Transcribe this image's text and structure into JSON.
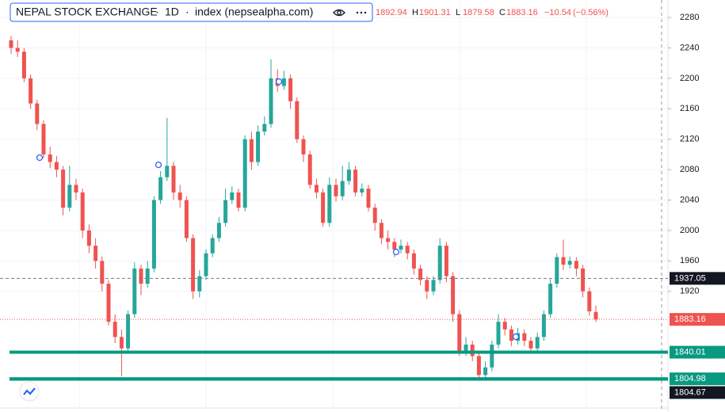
{
  "chart_data": {
    "type": "candlestick",
    "title": "NEPAL STOCK EXCHANGE",
    "interval": "1D",
    "source": "index (nepsealpha.com)",
    "ohlc_prefixes": [
      "O",
      "H",
      "L",
      "C"
    ],
    "change": {
      "value": -10.54,
      "label": "−10.54"
    },
    "change_percent": {
      "value": -0.56,
      "label": "(−0.56%)"
    },
    "open": [
      2250,
      2240,
      2235,
      2200,
      2167,
      2140,
      2100,
      2090,
      2080,
      2030,
      2060,
      2050,
      2000,
      1980,
      1960,
      1930,
      1880,
      1860,
      1845,
      1890,
      1950,
      1930,
      1950,
      2040,
      2070,
      2085,
      2050,
      2040,
      1990,
      1920,
      1940,
      1970,
      1990,
      2010,
      2040,
      2050,
      2030,
      2120,
      2090,
      2130,
      2140,
      2200,
      2190,
      2200,
      2170,
      2120,
      2100,
      2060,
      2050,
      2010,
      2060,
      2045,
      2065,
      2080,
      2050,
      2055,
      2030,
      2010,
      1990,
      1985,
      1975,
      1980,
      1970,
      1950,
      1935,
      1920,
      1935,
      1980,
      1940,
      1890,
      1840,
      1850,
      1835,
      1810,
      1820,
      1850,
      1880,
      1870,
      1855,
      1865,
      1855,
      1845,
      1860,
      1890,
      1930,
      1965,
      1955,
      1960,
      1950,
      1920,
      1892.94
    ],
    "high": [
      2256,
      2250,
      2240,
      2205,
      2172,
      2145,
      2110,
      2098,
      2085,
      2085,
      2068,
      2055,
      2008,
      1990,
      1966,
      1935,
      1890,
      1870,
      1895,
      1958,
      1955,
      1960,
      2045,
      2078,
      2148,
      2090,
      2060,
      2045,
      1995,
      1948,
      1975,
      1995,
      2018,
      2055,
      2058,
      2055,
      2125,
      2130,
      2138,
      2150,
      2225,
      2212,
      2210,
      2205,
      2175,
      2125,
      2105,
      2068,
      2055,
      2070,
      2068,
      2085,
      2090,
      2085,
      2062,
      2060,
      2035,
      2015,
      2000,
      1990,
      1988,
      1985,
      1975,
      1955,
      1940,
      1940,
      1990,
      1985,
      1945,
      1895,
      1860,
      1855,
      1840,
      1828,
      1855,
      1890,
      1885,
      1875,
      1872,
      1870,
      1860,
      1866,
      1895,
      1936,
      1970,
      1988,
      1966,
      1965,
      1955,
      1925,
      1901.31
    ],
    "low": [
      2232,
      2228,
      2195,
      2160,
      2132,
      2095,
      2082,
      2070,
      2020,
      2025,
      2040,
      1990,
      1970,
      1950,
      1920,
      1875,
      1852,
      1808,
      1840,
      1885,
      1915,
      1925,
      1945,
      2035,
      2065,
      2040,
      2030,
      1985,
      1910,
      1912,
      1935,
      1965,
      1985,
      2005,
      2035,
      2025,
      2025,
      2080,
      2085,
      2125,
      2135,
      2182,
      2185,
      2160,
      2115,
      2090,
      2055,
      2042,
      2005,
      2005,
      2038,
      2040,
      2060,
      2045,
      2045,
      2025,
      2000,
      1982,
      1975,
      1965,
      1970,
      1962,
      1942,
      1928,
      1910,
      1915,
      1930,
      1932,
      1880,
      1835,
      1835,
      1828,
      1805,
      1806,
      1815,
      1845,
      1862,
      1848,
      1850,
      1848,
      1838,
      1840,
      1855,
      1885,
      1925,
      1948,
      1950,
      1940,
      1912,
      1888,
      1879.58
    ],
    "close": [
      2240,
      2235,
      2200,
      2167,
      2140,
      2100,
      2090,
      2080,
      2030,
      2060,
      2050,
      2000,
      1980,
      1960,
      1930,
      1880,
      1860,
      1845,
      1890,
      1950,
      1930,
      1950,
      2040,
      2070,
      2085,
      2050,
      2040,
      1990,
      1920,
      1940,
      1970,
      1990,
      2010,
      2040,
      2050,
      2030,
      2120,
      2090,
      2130,
      2140,
      2200,
      2190,
      2200,
      2170,
      2120,
      2100,
      2060,
      2050,
      2010,
      2060,
      2045,
      2065,
      2080,
      2050,
      2055,
      2030,
      2010,
      1990,
      1985,
      1975,
      1980,
      1970,
      1950,
      1935,
      1920,
      1935,
      1980,
      1940,
      1890,
      1840,
      1850,
      1835,
      1810,
      1820,
      1850,
      1880,
      1870,
      1855,
      1865,
      1855,
      1845,
      1860,
      1890,
      1930,
      1965,
      1955,
      1960,
      1950,
      1920,
      1893.7,
      1883.16
    ],
    "up_color": "#26a69a",
    "down_color": "#ef5350",
    "ylim": [
      1766.6,
      2303
    ],
    "yticks": [
      1920,
      1960,
      2000,
      2040,
      2080,
      2120,
      2160,
      2200,
      2240,
      2280
    ],
    "grid": true,
    "reference_line": 1937.05,
    "levels": [
      1840.01,
      1804.98,
      1804.67
    ],
    "level_color": "#089981"
  }
}
